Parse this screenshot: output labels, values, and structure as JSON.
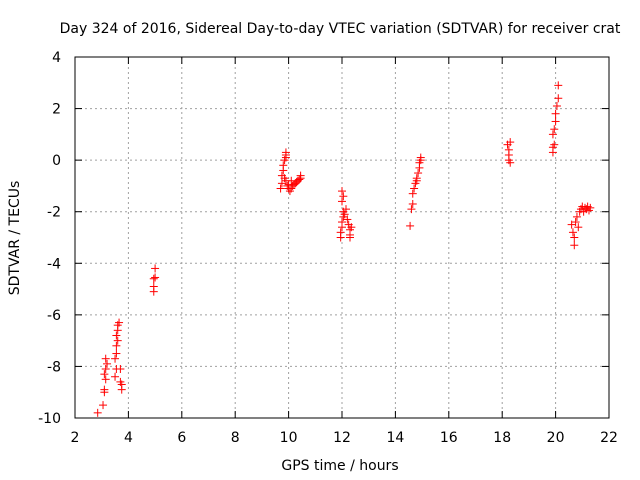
{
  "chart_data": {
    "type": "scatter",
    "title": "Day 324 of 2016, Sidereal Day-to-day VTEC variation (SDTVAR) for receiver crat",
    "xlabel": "GPS time / hours",
    "ylabel": "SDTVAR / TECUs",
    "xlim": [
      2,
      22
    ],
    "ylim": [
      -10,
      4
    ],
    "xticks": [
      2,
      4,
      6,
      8,
      10,
      12,
      14,
      16,
      18,
      20,
      22
    ],
    "yticks": [
      -10,
      -8,
      -6,
      -4,
      -2,
      0,
      2,
      4
    ],
    "grid": true,
    "marker": "+",
    "color": "#ff0000",
    "series": [
      {
        "name": "SDTVAR",
        "points": [
          [
            2.85,
            -9.8
          ],
          [
            3.05,
            -9.5
          ],
          [
            3.1,
            -9.0
          ],
          [
            3.1,
            -8.9
          ],
          [
            3.15,
            -8.5
          ],
          [
            3.1,
            -8.3
          ],
          [
            3.15,
            -8.1
          ],
          [
            3.2,
            -7.9
          ],
          [
            3.15,
            -7.7
          ],
          [
            3.5,
            -8.4
          ],
          [
            3.55,
            -8.1
          ],
          [
            3.5,
            -7.7
          ],
          [
            3.55,
            -7.5
          ],
          [
            3.55,
            -7.2
          ],
          [
            3.6,
            -7.0
          ],
          [
            3.55,
            -6.8
          ],
          [
            3.6,
            -6.6
          ],
          [
            3.6,
            -6.4
          ],
          [
            3.65,
            -6.3
          ],
          [
            3.7,
            -8.6
          ],
          [
            3.75,
            -8.7
          ],
          [
            3.75,
            -8.9
          ],
          [
            3.7,
            -8.1
          ],
          [
            4.95,
            -5.1
          ],
          [
            4.95,
            -4.9
          ],
          [
            4.95,
            -4.6
          ],
          [
            5.0,
            -4.55
          ],
          [
            5.0,
            -4.2
          ],
          [
            9.7,
            -1.1
          ],
          [
            9.75,
            -0.9
          ],
          [
            9.75,
            -0.6
          ],
          [
            9.8,
            -0.4
          ],
          [
            9.8,
            -0.2
          ],
          [
            9.85,
            0.0
          ],
          [
            9.9,
            0.1
          ],
          [
            9.9,
            0.2
          ],
          [
            9.9,
            0.3
          ],
          [
            9.85,
            -0.7
          ],
          [
            9.9,
            -0.8
          ],
          [
            9.95,
            -1.0
          ],
          [
            10.0,
            -1.1
          ],
          [
            10.05,
            -1.2
          ],
          [
            10.1,
            -1.1
          ],
          [
            10.15,
            -1.0
          ],
          [
            10.2,
            -0.95
          ],
          [
            10.25,
            -0.9
          ],
          [
            10.3,
            -0.85
          ],
          [
            10.35,
            -0.8
          ],
          [
            10.4,
            -0.75
          ],
          [
            10.45,
            -0.7
          ],
          [
            10.45,
            -0.6
          ],
          [
            10.0,
            -0.95
          ],
          [
            10.1,
            -0.8
          ],
          [
            11.95,
            -3.0
          ],
          [
            11.95,
            -2.8
          ],
          [
            12.0,
            -2.6
          ],
          [
            12.0,
            -2.4
          ],
          [
            12.05,
            -2.2
          ],
          [
            12.05,
            -2.0
          ],
          [
            12.0,
            -1.6
          ],
          [
            12.05,
            -1.4
          ],
          [
            12.0,
            -1.2
          ],
          [
            12.1,
            -2.1
          ],
          [
            12.15,
            -1.9
          ],
          [
            12.2,
            -2.3
          ],
          [
            12.25,
            -2.5
          ],
          [
            12.3,
            -2.7
          ],
          [
            12.3,
            -2.9
          ],
          [
            12.35,
            -2.6
          ],
          [
            12.3,
            -3.0
          ],
          [
            14.55,
            -2.55
          ],
          [
            14.6,
            -1.9
          ],
          [
            14.65,
            -1.7
          ],
          [
            14.65,
            -1.3
          ],
          [
            14.7,
            -1.1
          ],
          [
            14.75,
            -0.9
          ],
          [
            14.8,
            -0.7
          ],
          [
            14.8,
            -0.8
          ],
          [
            14.85,
            -0.5
          ],
          [
            14.9,
            -0.3
          ],
          [
            14.9,
            -0.1
          ],
          [
            14.95,
            0.1
          ],
          [
            14.95,
            0.0
          ],
          [
            18.2,
            0.6
          ],
          [
            18.25,
            0.4
          ],
          [
            18.25,
            0.2
          ],
          [
            18.3,
            -0.1
          ],
          [
            18.25,
            0.0
          ],
          [
            18.3,
            0.7
          ],
          [
            19.9,
            0.5
          ],
          [
            19.9,
            0.3
          ],
          [
            19.95,
            0.6
          ],
          [
            19.9,
            1.0
          ],
          [
            19.95,
            1.2
          ],
          [
            20.0,
            1.5
          ],
          [
            20.0,
            1.8
          ],
          [
            20.05,
            2.1
          ],
          [
            20.1,
            2.4
          ],
          [
            20.1,
            2.9
          ],
          [
            20.6,
            -2.5
          ],
          [
            20.65,
            -2.8
          ],
          [
            20.7,
            -3.0
          ],
          [
            20.7,
            -3.3
          ],
          [
            20.75,
            -2.4
          ],
          [
            20.8,
            -2.2
          ],
          [
            20.85,
            -2.6
          ],
          [
            20.9,
            -2.0
          ],
          [
            20.95,
            -1.9
          ],
          [
            21.0,
            -1.8
          ],
          [
            21.05,
            -2.0
          ],
          [
            21.1,
            -1.85
          ],
          [
            21.15,
            -1.9
          ],
          [
            21.2,
            -1.8
          ],
          [
            21.25,
            -1.95
          ],
          [
            21.3,
            -1.85
          ]
        ]
      }
    ]
  }
}
